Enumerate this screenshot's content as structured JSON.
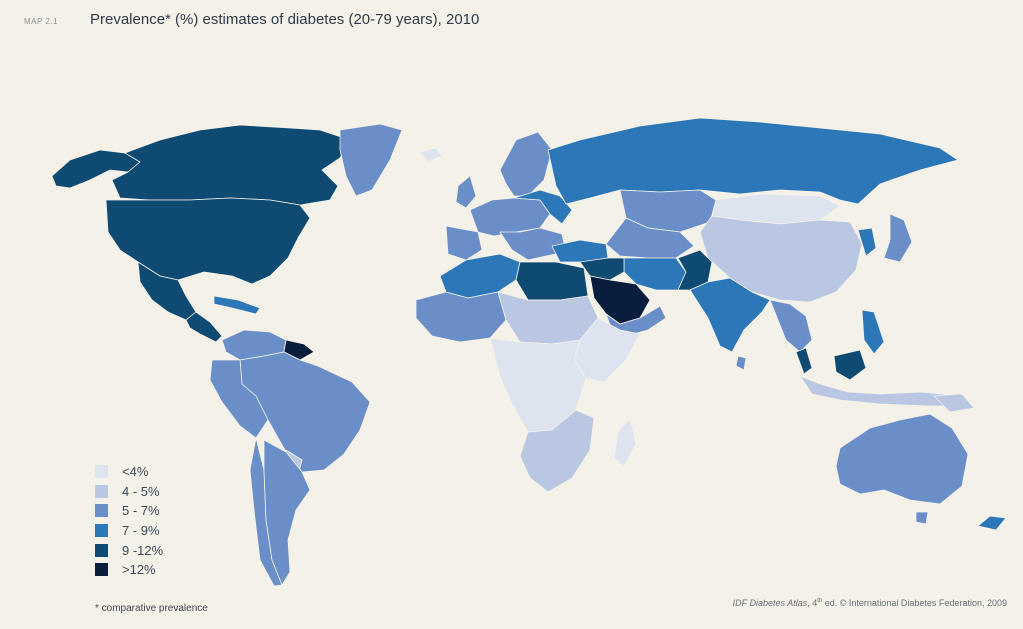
{
  "header": {
    "map_label": "MAP 2.1",
    "title": "Prevalence* (%) estimates of diabetes (20-79 years), 2010"
  },
  "colors": {
    "background": "#f4f1e9",
    "lt4": "#dde3ef",
    "4to5": "#b9c7e3",
    "5to7": "#6a8ec8",
    "7to9": "#2b77b8",
    "9to12": "#0e4a72",
    "gt12": "#0b1d3c"
  },
  "legend": {
    "items": [
      {
        "label": "<4%",
        "color": "#dde3ef"
      },
      {
        "label": "4 - 5%",
        "color": "#b9c7e3"
      },
      {
        "label": "5 - 7%",
        "color": "#6a8ec8"
      },
      {
        "label": "7 - 9%",
        "color": "#2b77b8"
      },
      {
        "label": "9 -12%",
        "color": "#0e4a72"
      },
      {
        "label": ">12%",
        "color": "#0b1d3c"
      }
    ]
  },
  "footnote": "* comparative prevalence",
  "credit": {
    "source": "IDF Diabetes Atlas",
    "edition_num": ", 4",
    "edition_sup": "th",
    "rest": " ed. © International Diabetes Federation, 2009"
  }
}
